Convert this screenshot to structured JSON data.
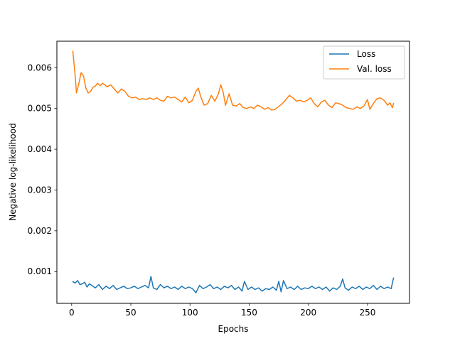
{
  "chart_data": {
    "type": "line",
    "title": "",
    "xlabel": "Epochs",
    "ylabel": "Negative log-likelihood",
    "xlim": [
      -12.5,
      285.5
    ],
    "ylim": [
      0.00022,
      0.00665
    ],
    "xticks": [
      0,
      50,
      100,
      150,
      200,
      250
    ],
    "xtick_labels": [
      "0",
      "50",
      "100",
      "150",
      "200",
      "250"
    ],
    "yticks": [
      0.001,
      0.002,
      0.003,
      0.004,
      0.005,
      0.006
    ],
    "ytick_labels": [
      "0.001",
      "0.002",
      "0.003",
      "0.004",
      "0.005",
      "0.006"
    ],
    "grid": false,
    "legend_position": "top-right",
    "series": [
      {
        "name": "Loss",
        "color": "#1f77b4",
        "points": [
          [
            1,
            0.00075
          ],
          [
            3,
            0.00072
          ],
          [
            5,
            0.00078
          ],
          [
            7,
            0.00068
          ],
          [
            9,
            0.0007
          ],
          [
            11,
            0.00074
          ],
          [
            13,
            0.00062
          ],
          [
            15,
            0.0007
          ],
          [
            17,
            0.00066
          ],
          [
            20,
            0.0006
          ],
          [
            23,
            0.00068
          ],
          [
            26,
            0.00056
          ],
          [
            29,
            0.00064
          ],
          [
            32,
            0.00058
          ],
          [
            35,
            0.00066
          ],
          [
            38,
            0.00056
          ],
          [
            41,
            0.0006
          ],
          [
            44,
            0.00064
          ],
          [
            47,
            0.00058
          ],
          [
            50,
            0.0006
          ],
          [
            53,
            0.00064
          ],
          [
            56,
            0.00058
          ],
          [
            59,
            0.00062
          ],
          [
            62,
            0.00066
          ],
          [
            65,
            0.0006
          ],
          [
            67,
            0.00088
          ],
          [
            69,
            0.0006
          ],
          [
            72,
            0.00056
          ],
          [
            75,
            0.00068
          ],
          [
            78,
            0.0006
          ],
          [
            81,
            0.00064
          ],
          [
            84,
            0.00058
          ],
          [
            87,
            0.00062
          ],
          [
            90,
            0.00056
          ],
          [
            93,
            0.00064
          ],
          [
            96,
            0.00058
          ],
          [
            99,
            0.00062
          ],
          [
            102,
            0.00058
          ],
          [
            105,
            0.00048
          ],
          [
            108,
            0.00066
          ],
          [
            111,
            0.00058
          ],
          [
            114,
            0.00062
          ],
          [
            117,
            0.00068
          ],
          [
            120,
            0.00058
          ],
          [
            123,
            0.00062
          ],
          [
            126,
            0.00056
          ],
          [
            129,
            0.00064
          ],
          [
            132,
            0.0006
          ],
          [
            135,
            0.00066
          ],
          [
            138,
            0.00056
          ],
          [
            141,
            0.00062
          ],
          [
            144,
            0.00052
          ],
          [
            146,
            0.00076
          ],
          [
            149,
            0.00056
          ],
          [
            152,
            0.00062
          ],
          [
            155,
            0.00056
          ],
          [
            158,
            0.0006
          ],
          [
            161,
            0.00052
          ],
          [
            164,
            0.00058
          ],
          [
            167,
            0.00056
          ],
          [
            170,
            0.00062
          ],
          [
            173,
            0.00054
          ],
          [
            175,
            0.00076
          ],
          [
            177,
            0.0005
          ],
          [
            179,
            0.00078
          ],
          [
            182,
            0.00058
          ],
          [
            185,
            0.00062
          ],
          [
            188,
            0.00056
          ],
          [
            191,
            0.00064
          ],
          [
            194,
            0.00056
          ],
          [
            197,
            0.0006
          ],
          [
            200,
            0.00058
          ],
          [
            203,
            0.00064
          ],
          [
            206,
            0.00058
          ],
          [
            209,
            0.00062
          ],
          [
            212,
            0.00056
          ],
          [
            215,
            0.00062
          ],
          [
            218,
            0.00052
          ],
          [
            221,
            0.0006
          ],
          [
            224,
            0.00056
          ],
          [
            227,
            0.00064
          ],
          [
            229,
            0.00082
          ],
          [
            231,
            0.0006
          ],
          [
            234,
            0.00054
          ],
          [
            237,
            0.00062
          ],
          [
            240,
            0.00058
          ],
          [
            243,
            0.00064
          ],
          [
            246,
            0.00056
          ],
          [
            249,
            0.00062
          ],
          [
            252,
            0.00058
          ],
          [
            255,
            0.00066
          ],
          [
            258,
            0.00056
          ],
          [
            261,
            0.00064
          ],
          [
            264,
            0.00058
          ],
          [
            267,
            0.00062
          ],
          [
            270,
            0.00058
          ],
          [
            272,
            0.00084
          ]
        ]
      },
      {
        "name": "Val. loss",
        "color": "#ff7f0e",
        "points": [
          [
            1,
            0.0064
          ],
          [
            2,
            0.0061
          ],
          [
            3,
            0.0058
          ],
          [
            4,
            0.00538
          ],
          [
            6,
            0.0056
          ],
          [
            8,
            0.00588
          ],
          [
            10,
            0.0058
          ],
          [
            12,
            0.0055
          ],
          [
            14,
            0.00538
          ],
          [
            16,
            0.00542
          ],
          [
            18,
            0.00552
          ],
          [
            20,
            0.00555
          ],
          [
            22,
            0.00562
          ],
          [
            24,
            0.00556
          ],
          [
            26,
            0.00562
          ],
          [
            28,
            0.00558
          ],
          [
            30,
            0.00553
          ],
          [
            33,
            0.00558
          ],
          [
            36,
            0.00548
          ],
          [
            39,
            0.00538
          ],
          [
            42,
            0.00548
          ],
          [
            45,
            0.00542
          ],
          [
            48,
            0.0053
          ],
          [
            51,
            0.00526
          ],
          [
            54,
            0.00528
          ],
          [
            57,
            0.00522
          ],
          [
            60,
            0.00524
          ],
          [
            63,
            0.00522
          ],
          [
            66,
            0.00526
          ],
          [
            69,
            0.00522
          ],
          [
            72,
            0.00526
          ],
          [
            75,
            0.0052
          ],
          [
            78,
            0.00518
          ],
          [
            81,
            0.0053
          ],
          [
            84,
            0.00526
          ],
          [
            87,
            0.00528
          ],
          [
            90,
            0.00522
          ],
          [
            93,
            0.00516
          ],
          [
            96,
            0.00528
          ],
          [
            99,
            0.00514
          ],
          [
            102,
            0.0052
          ],
          [
            105,
            0.00542
          ],
          [
            107,
            0.0055
          ],
          [
            109,
            0.0053
          ],
          [
            112,
            0.00508
          ],
          [
            115,
            0.00512
          ],
          [
            118,
            0.00532
          ],
          [
            121,
            0.00518
          ],
          [
            124,
            0.00536
          ],
          [
            126,
            0.00558
          ],
          [
            128,
            0.0054
          ],
          [
            130,
            0.00508
          ],
          [
            133,
            0.00536
          ],
          [
            136,
            0.00508
          ],
          [
            139,
            0.00506
          ],
          [
            142,
            0.00512
          ],
          [
            145,
            0.00502
          ],
          [
            148,
            0.005
          ],
          [
            151,
            0.00504
          ],
          [
            154,
            0.005
          ],
          [
            157,
            0.00508
          ],
          [
            160,
            0.00504
          ],
          [
            163,
            0.00498
          ],
          [
            166,
            0.00502
          ],
          [
            169,
            0.00496
          ],
          [
            172,
            0.00498
          ],
          [
            175,
            0.00505
          ],
          [
            178,
            0.00512
          ],
          [
            181,
            0.00522
          ],
          [
            184,
            0.00532
          ],
          [
            187,
            0.00526
          ],
          [
            190,
            0.00518
          ],
          [
            193,
            0.0052
          ],
          [
            196,
            0.00516
          ],
          [
            199,
            0.0052
          ],
          [
            202,
            0.00526
          ],
          [
            205,
            0.00512
          ],
          [
            208,
            0.00504
          ],
          [
            211,
            0.00516
          ],
          [
            214,
            0.0052
          ],
          [
            217,
            0.00508
          ],
          [
            220,
            0.00502
          ],
          [
            223,
            0.00514
          ],
          [
            226,
            0.00512
          ],
          [
            229,
            0.00508
          ],
          [
            232,
            0.00502
          ],
          [
            235,
            0.005
          ],
          [
            238,
            0.00498
          ],
          [
            241,
            0.00504
          ],
          [
            244,
            0.005
          ],
          [
            247,
            0.00506
          ],
          [
            250,
            0.00522
          ],
          [
            252,
            0.00498
          ],
          [
            255,
            0.00512
          ],
          [
            258,
            0.00524
          ],
          [
            261,
            0.00526
          ],
          [
            264,
            0.0052
          ],
          [
            267,
            0.00508
          ],
          [
            269,
            0.00514
          ],
          [
            271,
            0.00502
          ],
          [
            272,
            0.00512
          ]
        ]
      }
    ]
  }
}
